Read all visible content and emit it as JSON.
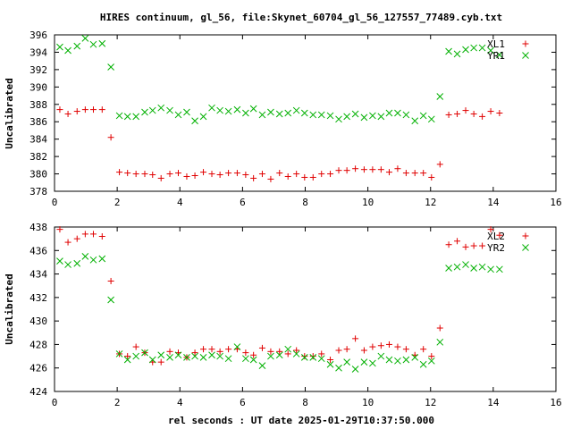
{
  "title": "HIRES continuum, gl_56, file:Skynet_60704_gl_56_127557_77489.cyb.txt",
  "xlabel": "rel seconds : UT date 2025-01-29T10:37:50.000",
  "colors": {
    "red": "#e00000",
    "green": "#00b000"
  },
  "chart_data": [
    {
      "type": "scatter",
      "ylabel": "Uncalibrated",
      "xlim": [
        0,
        16
      ],
      "ylim": [
        378,
        396
      ],
      "xticks": [
        0,
        2,
        4,
        6,
        8,
        10,
        12,
        14,
        16
      ],
      "yticks": [
        378,
        380,
        382,
        384,
        386,
        388,
        390,
        392,
        394,
        396
      ],
      "grid": false,
      "legend_position": "top-right",
      "series": [
        {
          "name": "XL1",
          "marker": "plus",
          "color": "#e00000",
          "x": [
            0.17,
            0.43,
            0.72,
            0.98,
            1.24,
            1.52,
            1.8,
            2.07,
            2.33,
            2.6,
            2.88,
            3.13,
            3.4,
            3.68,
            3.95,
            4.22,
            4.48,
            4.75,
            5.02,
            5.28,
            5.55,
            5.83,
            6.1,
            6.35,
            6.63,
            6.9,
            7.18,
            7.45,
            7.72,
            7.98,
            8.25,
            8.52,
            8.8,
            9.07,
            9.33,
            9.6,
            9.88,
            10.15,
            10.42,
            10.68,
            10.95,
            11.22,
            11.5,
            11.77,
            12.03,
            12.3,
            12.58,
            12.85,
            13.12,
            13.38,
            13.65,
            13.92,
            14.2
          ],
          "y": [
            387.4,
            386.9,
            387.2,
            387.4,
            387.4,
            387.4,
            384.2,
            380.2,
            380.1,
            380.0,
            380.0,
            379.9,
            379.5,
            380.0,
            380.1,
            379.7,
            379.8,
            380.2,
            380.0,
            379.9,
            380.1,
            380.1,
            379.9,
            379.5,
            380.0,
            379.4,
            380.1,
            379.7,
            380.0,
            379.6,
            379.6,
            380.0,
            380.0,
            380.4,
            380.4,
            380.6,
            380.5,
            380.5,
            380.5,
            380.2,
            380.6,
            380.1,
            380.1,
            380.1,
            379.6,
            381.1,
            386.8,
            386.9,
            387.3,
            386.9,
            386.6,
            387.2,
            387.0
          ]
        },
        {
          "name": "YR1",
          "marker": "cross",
          "color": "#00b000",
          "x": [
            0.17,
            0.43,
            0.72,
            0.98,
            1.24,
            1.52,
            1.8,
            2.07,
            2.33,
            2.6,
            2.88,
            3.13,
            3.4,
            3.68,
            3.95,
            4.22,
            4.48,
            4.75,
            5.02,
            5.28,
            5.55,
            5.83,
            6.1,
            6.35,
            6.63,
            6.9,
            7.18,
            7.45,
            7.72,
            7.98,
            8.25,
            8.52,
            8.8,
            9.07,
            9.33,
            9.6,
            9.88,
            10.15,
            10.42,
            10.68,
            10.95,
            11.22,
            11.5,
            11.77,
            12.03,
            12.3,
            12.58,
            12.85,
            13.12,
            13.38,
            13.65,
            13.92,
            14.2
          ],
          "y": [
            394.6,
            394.2,
            394.7,
            395.6,
            394.9,
            395.0,
            392.3,
            386.7,
            386.6,
            386.6,
            387.1,
            387.3,
            387.6,
            387.3,
            386.8,
            387.1,
            386.1,
            386.6,
            387.6,
            387.3,
            387.2,
            387.4,
            387.0,
            387.5,
            386.8,
            387.1,
            386.9,
            387.0,
            387.3,
            387.0,
            386.8,
            386.8,
            386.7,
            386.3,
            386.6,
            386.9,
            386.5,
            386.7,
            386.6,
            387.0,
            387.0,
            386.8,
            386.1,
            386.7,
            386.3,
            388.9,
            394.1,
            393.8,
            394.3,
            394.5,
            394.5,
            394.2,
            393.7
          ]
        }
      ]
    },
    {
      "type": "scatter",
      "ylabel": "Uncalibrated",
      "xlim": [
        0,
        16
      ],
      "ylim": [
        424,
        438
      ],
      "xticks": [
        0,
        2,
        4,
        6,
        8,
        10,
        12,
        14,
        16
      ],
      "yticks": [
        424,
        426,
        428,
        430,
        432,
        434,
        436,
        438
      ],
      "grid": false,
      "legend_position": "top-right",
      "series": [
        {
          "name": "XL2",
          "marker": "plus",
          "color": "#e00000",
          "x": [
            0.17,
            0.43,
            0.72,
            0.98,
            1.24,
            1.52,
            1.8,
            2.07,
            2.33,
            2.6,
            2.88,
            3.13,
            3.4,
            3.68,
            3.95,
            4.22,
            4.48,
            4.75,
            5.02,
            5.28,
            5.55,
            5.83,
            6.1,
            6.35,
            6.63,
            6.9,
            7.18,
            7.45,
            7.72,
            7.98,
            8.25,
            8.52,
            8.8,
            9.07,
            9.33,
            9.6,
            9.88,
            10.15,
            10.42,
            10.68,
            10.95,
            11.22,
            11.5,
            11.77,
            12.03,
            12.3,
            12.58,
            12.85,
            13.12,
            13.38,
            13.65,
            13.92,
            14.2
          ],
          "y": [
            437.8,
            436.7,
            437.0,
            437.4,
            437.4,
            437.2,
            433.4,
            427.2,
            427.0,
            427.8,
            427.3,
            426.5,
            426.5,
            427.4,
            427.3,
            426.9,
            427.3,
            427.6,
            427.6,
            427.4,
            427.6,
            427.6,
            427.3,
            427.1,
            427.7,
            427.4,
            427.4,
            427.2,
            427.5,
            427.0,
            427.0,
            427.2,
            426.7,
            427.5,
            427.6,
            428.5,
            427.5,
            427.8,
            427.9,
            428.0,
            427.8,
            427.6,
            427.1,
            427.6,
            427.0,
            429.4,
            436.5,
            436.8,
            436.3,
            436.4,
            436.4,
            437.8,
            437.3
          ]
        },
        {
          "name": "YR2",
          "marker": "cross",
          "color": "#00b000",
          "x": [
            0.17,
            0.43,
            0.72,
            0.98,
            1.24,
            1.52,
            1.8,
            2.07,
            2.33,
            2.6,
            2.88,
            3.13,
            3.4,
            3.68,
            3.95,
            4.22,
            4.48,
            4.75,
            5.02,
            5.28,
            5.55,
            5.83,
            6.1,
            6.35,
            6.63,
            6.9,
            7.18,
            7.45,
            7.72,
            7.98,
            8.25,
            8.52,
            8.8,
            9.07,
            9.33,
            9.6,
            9.88,
            10.15,
            10.42,
            10.68,
            10.95,
            11.22,
            11.5,
            11.77,
            12.03,
            12.3,
            12.58,
            12.85,
            13.12,
            13.38,
            13.65,
            13.92,
            14.2
          ],
          "y": [
            435.1,
            434.8,
            434.9,
            435.5,
            435.2,
            435.3,
            431.8,
            427.2,
            426.7,
            427.0,
            427.3,
            426.7,
            427.1,
            426.9,
            427.1,
            426.9,
            427.0,
            426.9,
            427.1,
            427.0,
            426.8,
            427.8,
            426.8,
            426.7,
            426.2,
            427.0,
            427.1,
            427.6,
            427.2,
            426.9,
            426.9,
            426.8,
            426.3,
            426.0,
            426.5,
            425.9,
            426.5,
            426.4,
            427.0,
            426.7,
            426.6,
            426.7,
            426.9,
            426.3,
            426.6,
            428.2,
            434.5,
            434.6,
            434.8,
            434.5,
            434.6,
            434.4,
            434.4
          ]
        }
      ]
    }
  ]
}
